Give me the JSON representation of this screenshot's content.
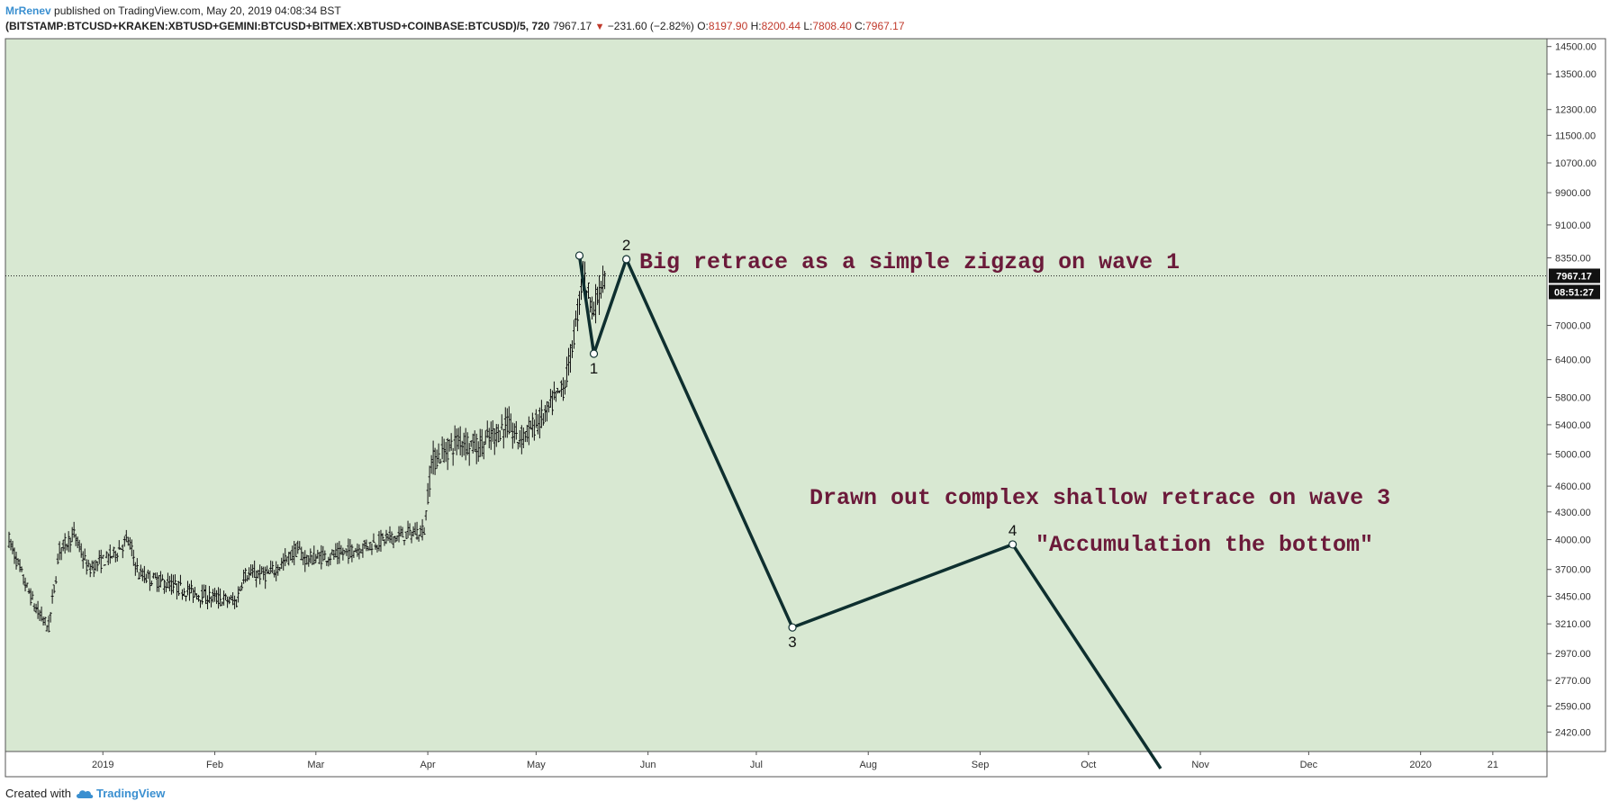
{
  "header": {
    "author": "MrRenev",
    "published_text": "published on TradingView.com, May 20, 2019 04:08:34 BST",
    "symbol": "(BITSTAMP:BTCUSD+KRAKEN:XBTUSD+GEMINI:BTCUSD+BITMEX:XBTUSD+COINBASE:BTCUSD)/5, 720",
    "last": "7967.17",
    "change": "−231.60 (−2.82%)",
    "o_label": "O:",
    "o": "8197.90",
    "h_label": "H:",
    "h": "8200.44",
    "l_label": "L:",
    "l": "7808.40",
    "c_label": "C:",
    "c": "7967.17"
  },
  "footer": {
    "created_with": "Created with",
    "brand": "TradingView"
  },
  "colors": {
    "background": "#d8e8d2",
    "price_bars": "#111111",
    "wave_line": "#0e2f2f",
    "annotation": "#6b1a3a",
    "ohlc_red": "#c0392b",
    "brand": "#3a8fd0"
  },
  "chart_data": {
    "type": "line",
    "scale": "log",
    "ylim": [
      2300,
      14800
    ],
    "price_ticks": [
      "14500.00",
      "13500.00",
      "12300.00",
      "11500.00",
      "10700.00",
      "9900.00",
      "9100.00",
      "8350.00",
      "7000.00",
      "6400.00",
      "5800.00",
      "5400.00",
      "5000.00",
      "4600.00",
      "4300.00",
      "4000.00",
      "3700.00",
      "3450.00",
      "3210.00",
      "2970.00",
      "2770.00",
      "2590.00",
      "2420.00"
    ],
    "time_ticks": [
      {
        "label": "2019",
        "date": "2019-01-01"
      },
      {
        "label": "Feb",
        "date": "2019-02-01"
      },
      {
        "label": "Mar",
        "date": "2019-03-01"
      },
      {
        "label": "Apr",
        "date": "2019-04-01"
      },
      {
        "label": "May",
        "date": "2019-05-01"
      },
      {
        "label": "Jun",
        "date": "2019-06-01"
      },
      {
        "label": "Jul",
        "date": "2019-07-01"
      },
      {
        "label": "Aug",
        "date": "2019-08-01"
      },
      {
        "label": "Sep",
        "date": "2019-09-01"
      },
      {
        "label": "Oct",
        "date": "2019-10-01"
      },
      {
        "label": "Nov",
        "date": "2019-11-01"
      },
      {
        "label": "Dec",
        "date": "2019-12-01"
      },
      {
        "label": "2020",
        "date": "2020-01-01"
      },
      {
        "label": "21",
        "date": "2020-01-21"
      }
    ],
    "price_series": {
      "name": "Price",
      "anchors": [
        [
          "2018-12-06",
          4000
        ],
        [
          "2018-12-10",
          3600
        ],
        [
          "2018-12-14",
          3300
        ],
        [
          "2018-12-17",
          3180
        ],
        [
          "2018-12-20",
          3900
        ],
        [
          "2018-12-24",
          4050
        ],
        [
          "2018-12-28",
          3700
        ],
        [
          "2019-01-04",
          3850
        ],
        [
          "2019-01-08",
          4000
        ],
        [
          "2019-01-11",
          3650
        ],
        [
          "2019-01-20",
          3550
        ],
        [
          "2019-01-29",
          3450
        ],
        [
          "2019-02-07",
          3400
        ],
        [
          "2019-02-09",
          3650
        ],
        [
          "2019-02-16",
          3650
        ],
        [
          "2019-02-24",
          3900
        ],
        [
          "2019-02-26",
          3800
        ],
        [
          "2019-03-08",
          3850
        ],
        [
          "2019-03-20",
          4000
        ],
        [
          "2019-03-31",
          4100
        ],
        [
          "2019-04-02",
          4900
        ],
        [
          "2019-04-10",
          5200
        ],
        [
          "2019-04-15",
          5100
        ],
        [
          "2019-04-23",
          5400
        ],
        [
          "2019-04-26",
          5200
        ],
        [
          "2019-05-03",
          5500
        ],
        [
          "2019-05-09",
          6000
        ],
        [
          "2019-05-12",
          7000
        ],
        [
          "2019-05-14",
          8000
        ],
        [
          "2019-05-17",
          7300
        ],
        [
          "2019-05-20",
          7967
        ]
      ]
    },
    "last_price": "7967.17",
    "countdown": "08:51:27",
    "wave_path": [
      {
        "date": "2019-05-13",
        "price": 8400,
        "label": ""
      },
      {
        "date": "2019-05-17",
        "price": 6500,
        "label": "1"
      },
      {
        "date": "2019-05-26",
        "price": 8320,
        "label": "2"
      },
      {
        "date": "2019-07-11",
        "price": 3180,
        "label": "3"
      },
      {
        "date": "2019-09-10",
        "price": 3950,
        "label": "4"
      },
      {
        "date": "2019-10-21",
        "price": 2200,
        "label": ""
      }
    ],
    "annotations": [
      {
        "text": "Big retrace as a simple zigzag on wave 1"
      },
      {
        "text": "Drawn out complex shallow retrace on wave 3"
      },
      {
        "text": "\"Accumulation the bottom\""
      }
    ]
  }
}
